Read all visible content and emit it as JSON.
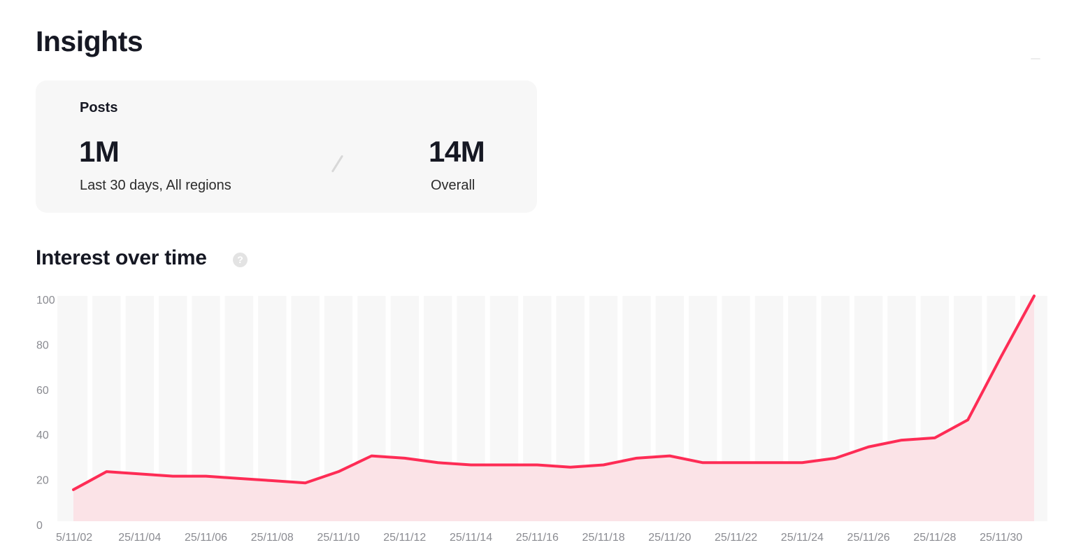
{
  "page": {
    "title": "Insights"
  },
  "posts": {
    "label": "Posts",
    "recent_value": "1M",
    "recent_caption": "Last 30 days, All regions",
    "overall_value": "14M",
    "overall_caption": "Overall"
  },
  "interest": {
    "title": "Interest over time",
    "help_icon": "?"
  },
  "colors": {
    "line": "#fe2c55",
    "area": "#fbe3e7",
    "band": "#f7f7f7",
    "tick": "#8a8b91"
  },
  "chart_data": {
    "type": "area",
    "title": "",
    "xlabel": "",
    "ylabel": "",
    "ylim": [
      0,
      100
    ],
    "yticks": [
      0,
      20,
      40,
      60,
      80,
      100
    ],
    "grid": false,
    "x": [
      "25/11/02",
      "25/11/03",
      "25/11/04",
      "25/11/05",
      "25/11/06",
      "25/11/07",
      "25/11/08",
      "25/11/09",
      "25/11/10",
      "25/11/11",
      "25/11/12",
      "25/11/13",
      "25/11/14",
      "25/11/15",
      "25/11/16",
      "25/11/17",
      "25/11/18",
      "25/11/19",
      "25/11/20",
      "25/11/21",
      "25/11/22",
      "25/11/23",
      "25/11/24",
      "25/11/25",
      "25/11/26",
      "25/11/27",
      "25/11/28",
      "25/11/29",
      "25/11/30",
      "25/12/01"
    ],
    "xtick_labels": [
      "5/11/02",
      "25/11/04",
      "25/11/06",
      "25/11/08",
      "25/11/10",
      "25/11/12",
      "25/11/14",
      "25/11/16",
      "25/11/18",
      "25/11/20",
      "25/11/22",
      "25/11/24",
      "25/11/26",
      "25/11/28",
      "25/11/30"
    ],
    "series": [
      {
        "values": [
          14,
          22,
          21,
          20,
          20,
          19,
          18,
          17,
          22,
          29,
          28,
          26,
          25,
          25,
          25,
          24,
          25,
          28,
          29,
          26,
          26,
          26,
          26,
          28,
          33,
          36,
          37,
          45,
          73,
          100
        ]
      }
    ]
  }
}
